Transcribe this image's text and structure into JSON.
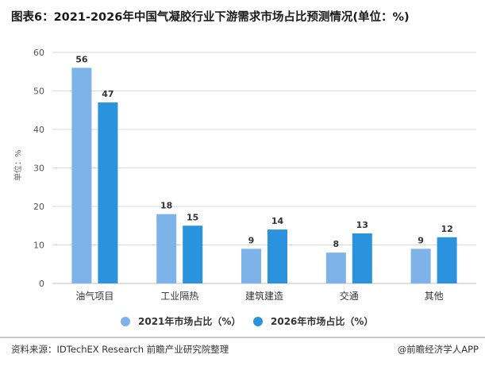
{
  "title": "图表6：2021-2026年中国气凝胶行业下游需求市场占比预测情况(单位：%)",
  "source": "资料来源：IDTechEX Research 前瞻产业研究院整理",
  "credit": "@前瞻经济学人APP",
  "colors": {
    "series1": "#7db3e8",
    "series2": "#2b93de",
    "grid": "#d9d9d9",
    "axis": "#bfbfbf"
  },
  "chart_data": {
    "type": "bar",
    "title": "图表6：2021-2026年中国气凝胶行业下游需求市场占比预测情况(单位：%)",
    "xlabel": "",
    "ylabel": "单位：%",
    "ylim": [
      0,
      60
    ],
    "yticks": [
      0,
      10,
      20,
      30,
      40,
      50,
      60
    ],
    "grid": true,
    "legend_position": "bottom",
    "categories": [
      "油气项目",
      "工业隔热",
      "建筑建造",
      "交通",
      "其他"
    ],
    "series": [
      {
        "name": "2021年市场占比（%）",
        "values": [
          56,
          18,
          9,
          8,
          9
        ]
      },
      {
        "name": "2026年市场占比（%）",
        "values": [
          47,
          15,
          14,
          13,
          12
        ]
      }
    ]
  }
}
